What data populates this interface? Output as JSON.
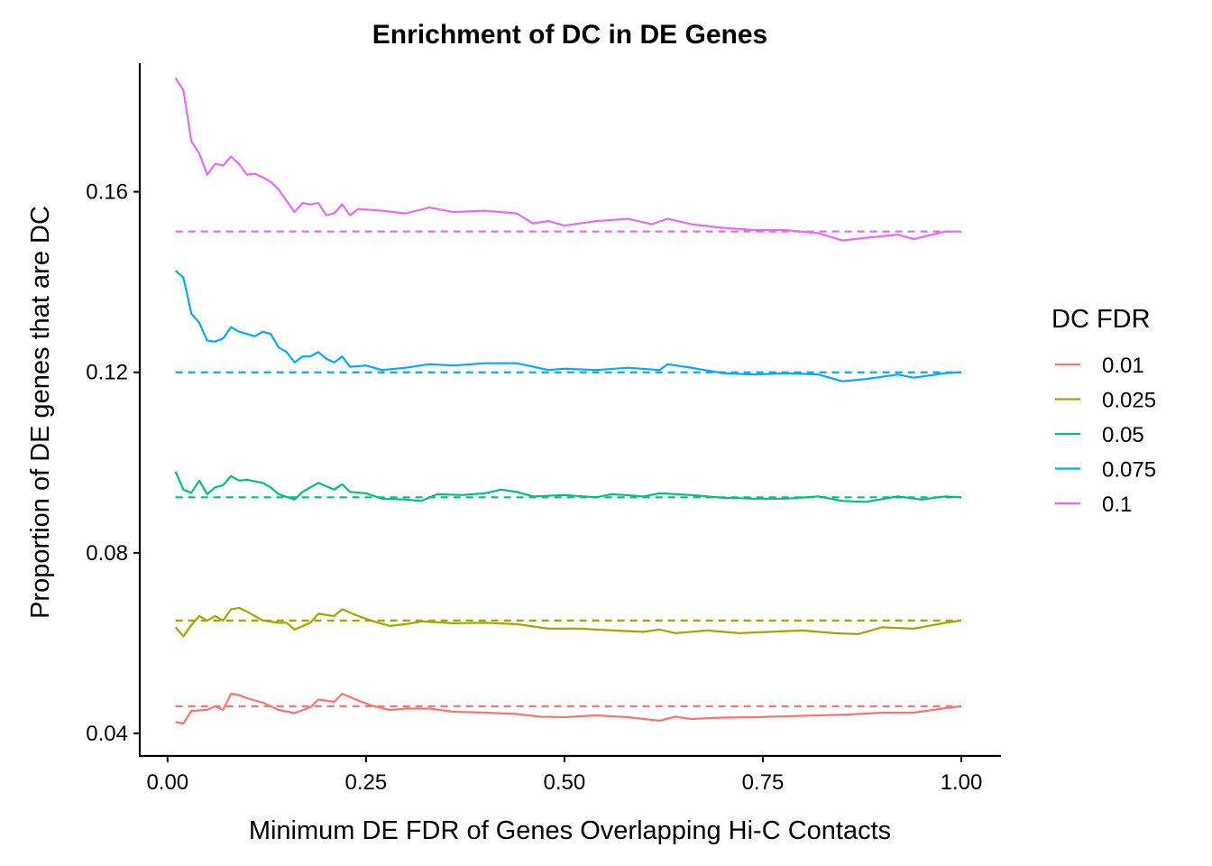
{
  "chart_data": {
    "type": "line",
    "title": "Enrichment of DC in DE Genes",
    "xlabel": "Minimum DE FDR of Genes Overlapping Hi-C Contacts",
    "ylabel": "Proportion of DE genes that are DC",
    "xlim": [
      -0.035,
      1.05
    ],
    "ylim": [
      0.035,
      0.1885
    ],
    "x_ticks": [
      0.0,
      0.25,
      0.5,
      0.75,
      1.0
    ],
    "x_tick_labels": [
      "0.00",
      "0.25",
      "0.50",
      "0.75",
      "1.00"
    ],
    "y_ticks": [
      0.04,
      0.08,
      0.12,
      0.16
    ],
    "y_tick_labels": [
      "0.04",
      "0.08",
      "0.12",
      "0.16"
    ],
    "grid": false,
    "legend": {
      "title": "DC FDR",
      "position": "right"
    },
    "series": [
      {
        "name": "0.01",
        "color": "#F8766D",
        "baseline": 0.046,
        "points": [
          [
            0.01,
            0.0425
          ],
          [
            0.02,
            0.0422
          ],
          [
            0.03,
            0.045
          ],
          [
            0.05,
            0.0452
          ],
          [
            0.06,
            0.046
          ],
          [
            0.07,
            0.0452
          ],
          [
            0.08,
            0.0488
          ],
          [
            0.09,
            0.0485
          ],
          [
            0.1,
            0.0478
          ],
          [
            0.12,
            0.0468
          ],
          [
            0.14,
            0.0452
          ],
          [
            0.16,
            0.0445
          ],
          [
            0.18,
            0.0458
          ],
          [
            0.19,
            0.0475
          ],
          [
            0.21,
            0.047
          ],
          [
            0.22,
            0.0488
          ],
          [
            0.24,
            0.0473
          ],
          [
            0.26,
            0.046
          ],
          [
            0.28,
            0.0452
          ],
          [
            0.3,
            0.0455
          ],
          [
            0.33,
            0.0455
          ],
          [
            0.36,
            0.0448
          ],
          [
            0.4,
            0.0446
          ],
          [
            0.44,
            0.0443
          ],
          [
            0.47,
            0.0437
          ],
          [
            0.5,
            0.0436
          ],
          [
            0.54,
            0.044
          ],
          [
            0.58,
            0.0436
          ],
          [
            0.62,
            0.0428
          ],
          [
            0.64,
            0.0437
          ],
          [
            0.66,
            0.0432
          ],
          [
            0.7,
            0.0435
          ],
          [
            0.74,
            0.0436
          ],
          [
            0.78,
            0.0438
          ],
          [
            0.82,
            0.044
          ],
          [
            0.86,
            0.0442
          ],
          [
            0.9,
            0.0446
          ],
          [
            0.94,
            0.0446
          ],
          [
            0.98,
            0.0456
          ],
          [
            1.0,
            0.046
          ]
        ]
      },
      {
        "name": "0.025",
        "color": "#A3A500",
        "baseline": 0.065,
        "points": [
          [
            0.01,
            0.0635
          ],
          [
            0.02,
            0.0615
          ],
          [
            0.03,
            0.064
          ],
          [
            0.04,
            0.066
          ],
          [
            0.05,
            0.065
          ],
          [
            0.06,
            0.066
          ],
          [
            0.07,
            0.065
          ],
          [
            0.08,
            0.0675
          ],
          [
            0.09,
            0.0678
          ],
          [
            0.1,
            0.067
          ],
          [
            0.12,
            0.065
          ],
          [
            0.14,
            0.0645
          ],
          [
            0.15,
            0.0645
          ],
          [
            0.16,
            0.063
          ],
          [
            0.18,
            0.0645
          ],
          [
            0.19,
            0.0665
          ],
          [
            0.21,
            0.066
          ],
          [
            0.22,
            0.0675
          ],
          [
            0.24,
            0.066
          ],
          [
            0.26,
            0.0648
          ],
          [
            0.28,
            0.0638
          ],
          [
            0.3,
            0.0642
          ],
          [
            0.32,
            0.0648
          ],
          [
            0.36,
            0.0644
          ],
          [
            0.4,
            0.0645
          ],
          [
            0.44,
            0.0642
          ],
          [
            0.48,
            0.0632
          ],
          [
            0.52,
            0.0632
          ],
          [
            0.56,
            0.0628
          ],
          [
            0.6,
            0.0625
          ],
          [
            0.62,
            0.063
          ],
          [
            0.64,
            0.0622
          ],
          [
            0.68,
            0.0628
          ],
          [
            0.72,
            0.0622
          ],
          [
            0.76,
            0.0625
          ],
          [
            0.8,
            0.0628
          ],
          [
            0.84,
            0.0622
          ],
          [
            0.87,
            0.062
          ],
          [
            0.9,
            0.0635
          ],
          [
            0.94,
            0.0632
          ],
          [
            0.98,
            0.0645
          ],
          [
            1.0,
            0.065
          ]
        ]
      },
      {
        "name": "0.05",
        "color": "#00BF7D",
        "baseline": 0.0923,
        "points": [
          [
            0.01,
            0.098
          ],
          [
            0.02,
            0.094
          ],
          [
            0.03,
            0.0933
          ],
          [
            0.04,
            0.096
          ],
          [
            0.05,
            0.093
          ],
          [
            0.06,
            0.0945
          ],
          [
            0.07,
            0.095
          ],
          [
            0.08,
            0.097
          ],
          [
            0.09,
            0.096
          ],
          [
            0.1,
            0.0962
          ],
          [
            0.12,
            0.0955
          ],
          [
            0.13,
            0.0945
          ],
          [
            0.14,
            0.093
          ],
          [
            0.16,
            0.0918
          ],
          [
            0.17,
            0.0935
          ],
          [
            0.19,
            0.0955
          ],
          [
            0.21,
            0.094
          ],
          [
            0.22,
            0.0952
          ],
          [
            0.23,
            0.0935
          ],
          [
            0.25,
            0.0932
          ],
          [
            0.27,
            0.092
          ],
          [
            0.3,
            0.0918
          ],
          [
            0.32,
            0.0915
          ],
          [
            0.34,
            0.093
          ],
          [
            0.37,
            0.0928
          ],
          [
            0.4,
            0.0932
          ],
          [
            0.42,
            0.094
          ],
          [
            0.44,
            0.0935
          ],
          [
            0.46,
            0.0925
          ],
          [
            0.5,
            0.0928
          ],
          [
            0.54,
            0.0923
          ],
          [
            0.56,
            0.093
          ],
          [
            0.6,
            0.0925
          ],
          [
            0.62,
            0.0932
          ],
          [
            0.66,
            0.0928
          ],
          [
            0.7,
            0.0922
          ],
          [
            0.74,
            0.092
          ],
          [
            0.78,
            0.092
          ],
          [
            0.82,
            0.0925
          ],
          [
            0.85,
            0.0915
          ],
          [
            0.88,
            0.0913
          ],
          [
            0.92,
            0.0925
          ],
          [
            0.95,
            0.0918
          ],
          [
            0.98,
            0.0925
          ],
          [
            1.0,
            0.0923
          ]
        ]
      },
      {
        "name": "0.075",
        "color": "#00A9FF",
        "baseline": 0.12,
        "points": [
          [
            0.01,
            0.1425
          ],
          [
            0.02,
            0.141
          ],
          [
            0.03,
            0.133
          ],
          [
            0.04,
            0.131
          ],
          [
            0.05,
            0.127
          ],
          [
            0.06,
            0.1268
          ],
          [
            0.07,
            0.1275
          ],
          [
            0.08,
            0.13
          ],
          [
            0.09,
            0.129
          ],
          [
            0.1,
            0.1285
          ],
          [
            0.11,
            0.128
          ],
          [
            0.12,
            0.129
          ],
          [
            0.13,
            0.1285
          ],
          [
            0.14,
            0.1255
          ],
          [
            0.15,
            0.1245
          ],
          [
            0.16,
            0.1222
          ],
          [
            0.17,
            0.1235
          ],
          [
            0.18,
            0.1235
          ],
          [
            0.19,
            0.1245
          ],
          [
            0.2,
            0.123
          ],
          [
            0.21,
            0.1222
          ],
          [
            0.22,
            0.1235
          ],
          [
            0.23,
            0.1212
          ],
          [
            0.25,
            0.1215
          ],
          [
            0.27,
            0.1205
          ],
          [
            0.3,
            0.121
          ],
          [
            0.33,
            0.1218
          ],
          [
            0.36,
            0.1215
          ],
          [
            0.4,
            0.122
          ],
          [
            0.44,
            0.122
          ],
          [
            0.48,
            0.1205
          ],
          [
            0.5,
            0.1208
          ],
          [
            0.54,
            0.1205
          ],
          [
            0.58,
            0.121
          ],
          [
            0.62,
            0.1205
          ],
          [
            0.63,
            0.1218
          ],
          [
            0.66,
            0.121
          ],
          [
            0.7,
            0.1198
          ],
          [
            0.74,
            0.1195
          ],
          [
            0.78,
            0.1198
          ],
          [
            0.82,
            0.1195
          ],
          [
            0.85,
            0.118
          ],
          [
            0.88,
            0.1185
          ],
          [
            0.92,
            0.1195
          ],
          [
            0.94,
            0.1188
          ],
          [
            0.98,
            0.1198
          ],
          [
            1.0,
            0.12
          ]
        ]
      },
      {
        "name": "0.1",
        "color": "#E76BF3",
        "baseline": 0.1512,
        "points": [
          [
            0.01,
            0.1852
          ],
          [
            0.02,
            0.1825
          ],
          [
            0.03,
            0.1712
          ],
          [
            0.04,
            0.1685
          ],
          [
            0.05,
            0.1638
          ],
          [
            0.06,
            0.1662
          ],
          [
            0.07,
            0.1658
          ],
          [
            0.08,
            0.1678
          ],
          [
            0.09,
            0.1662
          ],
          [
            0.1,
            0.1638
          ],
          [
            0.11,
            0.164
          ],
          [
            0.12,
            0.1632
          ],
          [
            0.13,
            0.1622
          ],
          [
            0.14,
            0.1605
          ],
          [
            0.15,
            0.158
          ],
          [
            0.16,
            0.1555
          ],
          [
            0.17,
            0.1575
          ],
          [
            0.18,
            0.1572
          ],
          [
            0.19,
            0.1575
          ],
          [
            0.2,
            0.1548
          ],
          [
            0.21,
            0.1552
          ],
          [
            0.22,
            0.1572
          ],
          [
            0.23,
            0.1548
          ],
          [
            0.24,
            0.1562
          ],
          [
            0.27,
            0.1558
          ],
          [
            0.3,
            0.1552
          ],
          [
            0.33,
            0.1565
          ],
          [
            0.36,
            0.1555
          ],
          [
            0.4,
            0.1558
          ],
          [
            0.44,
            0.1552
          ],
          [
            0.46,
            0.153
          ],
          [
            0.48,
            0.1535
          ],
          [
            0.5,
            0.1525
          ],
          [
            0.54,
            0.1535
          ],
          [
            0.58,
            0.154
          ],
          [
            0.61,
            0.1528
          ],
          [
            0.63,
            0.154
          ],
          [
            0.66,
            0.1528
          ],
          [
            0.7,
            0.152
          ],
          [
            0.74,
            0.1515
          ],
          [
            0.78,
            0.1515
          ],
          [
            0.82,
            0.1508
          ],
          [
            0.85,
            0.1492
          ],
          [
            0.88,
            0.1498
          ],
          [
            0.92,
            0.1505
          ],
          [
            0.94,
            0.1495
          ],
          [
            0.98,
            0.1512
          ],
          [
            1.0,
            0.1512
          ]
        ]
      }
    ]
  }
}
